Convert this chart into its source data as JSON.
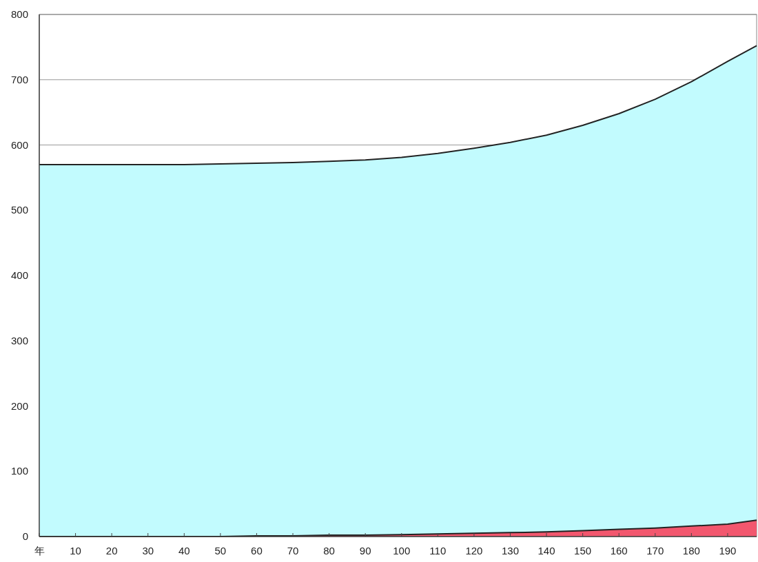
{
  "chart_data": {
    "type": "area",
    "x": [
      0,
      10,
      20,
      30,
      40,
      50,
      60,
      70,
      80,
      90,
      100,
      110,
      120,
      130,
      140,
      150,
      160,
      170,
      180,
      190,
      198
    ],
    "series": [
      {
        "color": "#c2fbfe",
        "values": [
          570,
          570,
          570,
          570,
          570,
          571,
          572,
          573,
          575,
          577,
          581,
          587,
          595,
          604,
          615,
          630,
          648,
          670,
          697,
          728,
          752
        ]
      },
      {
        "color": "#f2576e",
        "values": [
          0,
          0,
          0,
          0,
          0,
          0,
          1,
          1,
          2,
          2,
          3,
          4,
          5,
          6,
          7,
          9,
          11,
          13,
          16,
          19,
          25
        ]
      }
    ],
    "xlim": [
      0,
      198
    ],
    "ylim": [
      0,
      800
    ],
    "xticks": [
      {
        "value": 0,
        "label": "年"
      },
      10,
      20,
      30,
      40,
      50,
      60,
      70,
      80,
      90,
      100,
      110,
      120,
      130,
      140,
      150,
      160,
      170,
      180,
      190
    ],
    "yticks": [
      0,
      100,
      200,
      300,
      400,
      500,
      600,
      700,
      800
    ],
    "grid": "y"
  }
}
